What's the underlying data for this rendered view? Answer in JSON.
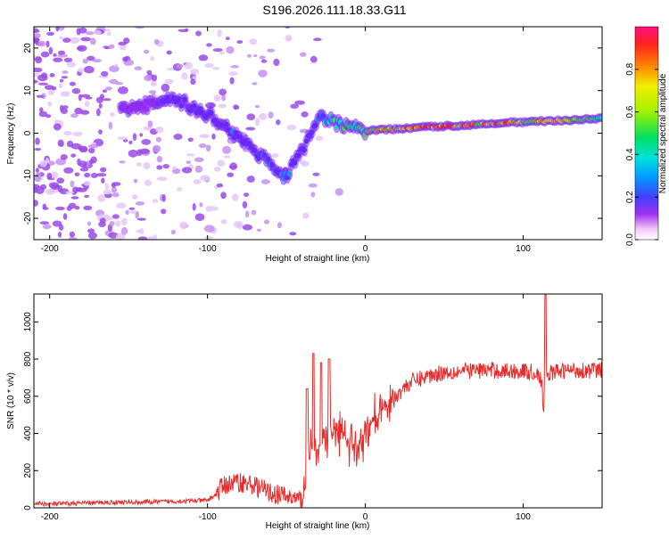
{
  "title": "S196.2026.111.18.33.G11",
  "chart_data": [
    {
      "type": "heatmap",
      "xlabel": "Height of straight line (km)",
      "ylabel": "Frequency (Hz)",
      "xlim": [
        -210,
        150
      ],
      "ylim": [
        -25,
        25
      ],
      "xticks": [
        -200,
        -100,
        0,
        100
      ],
      "yticks": [
        -20,
        -10,
        0,
        10,
        20
      ],
      "xtick_labels": [
        "-200",
        "-100",
        "0",
        "100"
      ],
      "ytick_labels": [
        "-20",
        "-10",
        "0",
        "10",
        "20"
      ],
      "colorbar": {
        "label": "Normalized spectral amplitude",
        "range": [
          0,
          1
        ],
        "ticks": [
          0.0,
          0.2,
          0.4,
          0.6,
          0.8
        ],
        "tick_labels": [
          "0.0",
          "0.2",
          "0.4",
          "0.6",
          "0.8"
        ]
      },
      "ridge": {
        "x": [
          -155,
          -140,
          -125,
          -115,
          -100,
          -90,
          -80,
          -70,
          -60,
          -52,
          -45,
          -38,
          -30,
          -25,
          -20,
          -15,
          -10,
          -5,
          0,
          10,
          20,
          40,
          60,
          80,
          90,
          100,
          110,
          120,
          130,
          140,
          150
        ],
        "freq": [
          5.5,
          6.5,
          7.5,
          7.0,
          4.5,
          2.0,
          -1.0,
          -4.0,
          -7.0,
          -11.0,
          -7.0,
          -3.0,
          3.0,
          3.5,
          2.5,
          2.0,
          1.5,
          1.0,
          0.5,
          0.8,
          1.0,
          1.5,
          1.8,
          2.3,
          2.6,
          2.5,
          2.8,
          2.9,
          3.1,
          3.3,
          3.5
        ],
        "amplitude": [
          0.15,
          0.2,
          0.25,
          0.25,
          0.3,
          0.3,
          0.3,
          0.3,
          0.35,
          0.35,
          0.3,
          0.3,
          0.35,
          0.45,
          0.5,
          0.55,
          0.6,
          0.65,
          0.7,
          0.85,
          0.8,
          0.9,
          0.92,
          0.85,
          0.9,
          0.8,
          0.85,
          0.8,
          0.75,
          0.6,
          0.5
        ]
      }
    },
    {
      "type": "line",
      "xlabel": "Height of straight line (km)",
      "ylabel": "SNR (10 * v/v)",
      "xlim": [
        -210,
        150
      ],
      "ylim": [
        0,
        1150
      ],
      "xticks": [
        -200,
        -100,
        0,
        100
      ],
      "yticks": [
        0,
        200,
        400,
        600,
        800,
        1000
      ],
      "xtick_labels": [
        "-200",
        "-100",
        "0",
        "100"
      ],
      "ytick_labels": [
        "0",
        "200",
        "400",
        "600",
        "800",
        "1000"
      ],
      "series": [
        {
          "name": "SNR",
          "color": "#e82a2a",
          "x": [
            -210,
            -200,
            -180,
            -160,
            -140,
            -120,
            -100,
            -95,
            -90,
            -80,
            -70,
            -60,
            -50,
            -40,
            -37,
            -33,
            -30,
            -25,
            -20,
            -15,
            -10,
            -5,
            0,
            10,
            20,
            25,
            30,
            40,
            50,
            60,
            70,
            80,
            90,
            100,
            105,
            110,
            112,
            113,
            114,
            115,
            116,
            118,
            120,
            130,
            140,
            150
          ],
          "y": [
            25,
            20,
            25,
            30,
            30,
            35,
            40,
            70,
            120,
            140,
            120,
            80,
            60,
            40,
            150,
            400,
            300,
            360,
            430,
            400,
            330,
            350,
            400,
            520,
            610,
            650,
            680,
            710,
            730,
            735,
            740,
            740,
            735,
            735,
            730,
            720,
            650,
            480,
            850,
            700,
            720,
            730,
            730,
            740,
            740,
            740
          ]
        }
      ],
      "spikes": [
        {
          "x": -37,
          "y": 640
        },
        {
          "x": -33,
          "y": 830
        },
        {
          "x": -28,
          "y": 780
        },
        {
          "x": -23,
          "y": 800
        },
        {
          "x": 114,
          "y": 1150
        }
      ]
    }
  ]
}
